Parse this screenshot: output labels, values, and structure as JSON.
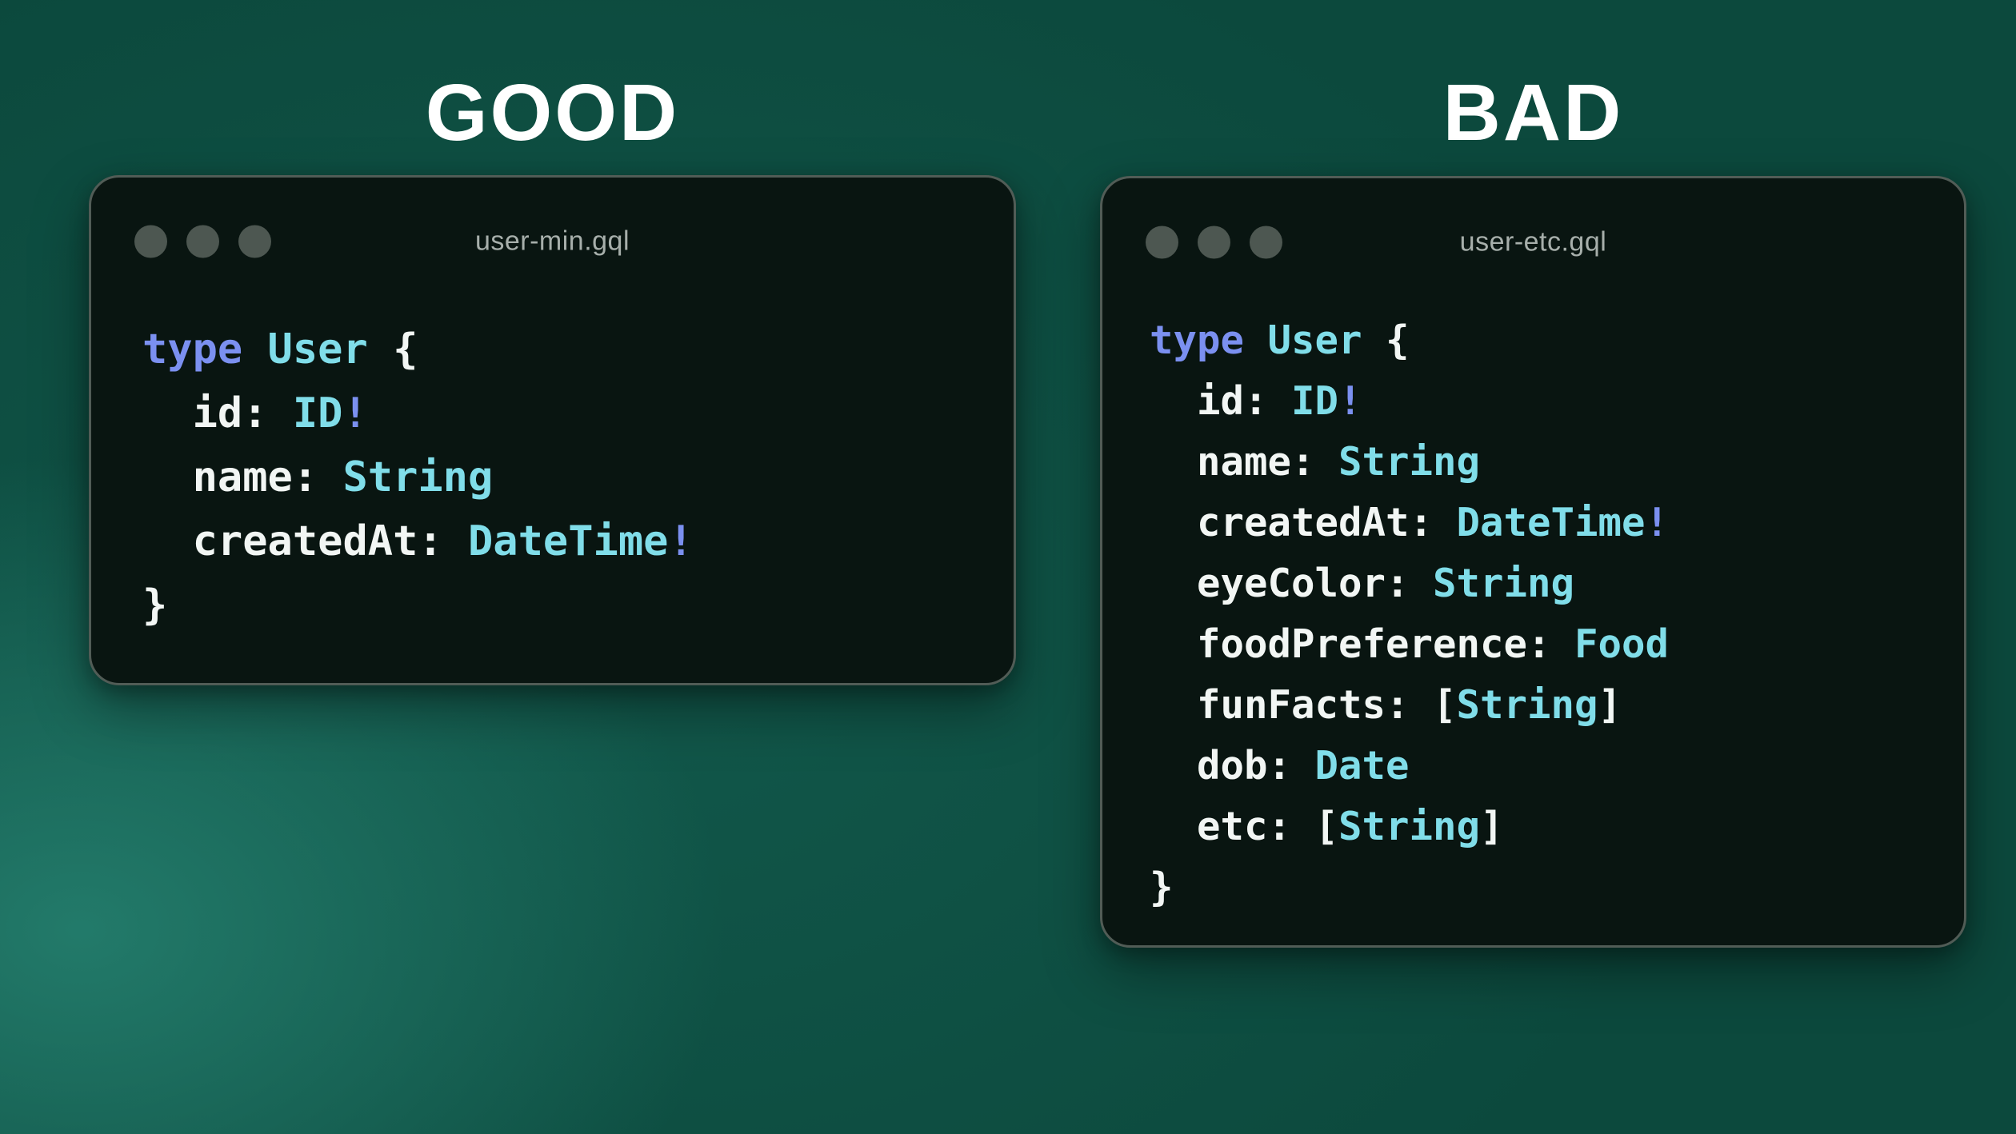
{
  "colors": {
    "background_base": "#0c493d",
    "background_glow": "#26826f",
    "heading": "#ffffff",
    "kw": "#7b90f0",
    "ty": "#80dde9",
    "plain": "#f2f6f4",
    "winbg": "#091511",
    "winborder": "#515c56",
    "dot": "#4d5751",
    "titletext": "#a7afab"
  },
  "headings": [
    {
      "id": "good",
      "label": "GOOD"
    },
    {
      "id": "bad",
      "label": "BAD"
    }
  ],
  "windows": [
    {
      "id": "good",
      "filename": "user-min.gql",
      "code": [
        [
          {
            "t": "kw",
            "s": "type"
          },
          {
            "t": "pl",
            "s": " "
          },
          {
            "t": "ty",
            "s": "User"
          },
          {
            "t": "pl",
            "s": " {"
          }
        ],
        [
          {
            "t": "pl",
            "s": "  id: "
          },
          {
            "t": "ty",
            "s": "ID"
          },
          {
            "t": "kw",
            "s": "!"
          }
        ],
        [
          {
            "t": "pl",
            "s": "  name: "
          },
          {
            "t": "ty",
            "s": "String"
          }
        ],
        [
          {
            "t": "pl",
            "s": "  createdAt: "
          },
          {
            "t": "ty",
            "s": "DateTime"
          },
          {
            "t": "kw",
            "s": "!"
          }
        ],
        [
          {
            "t": "pl",
            "s": "}"
          }
        ]
      ]
    },
    {
      "id": "bad",
      "filename": "user-etc.gql",
      "code": [
        [
          {
            "t": "kw",
            "s": "type"
          },
          {
            "t": "pl",
            "s": " "
          },
          {
            "t": "ty",
            "s": "User"
          },
          {
            "t": "pl",
            "s": " {"
          }
        ],
        [
          {
            "t": "pl",
            "s": "  id: "
          },
          {
            "t": "ty",
            "s": "ID"
          },
          {
            "t": "kw",
            "s": "!"
          }
        ],
        [
          {
            "t": "pl",
            "s": "  name: "
          },
          {
            "t": "ty",
            "s": "String"
          }
        ],
        [
          {
            "t": "pl",
            "s": "  createdAt: "
          },
          {
            "t": "ty",
            "s": "DateTime"
          },
          {
            "t": "kw",
            "s": "!"
          }
        ],
        [
          {
            "t": "pl",
            "s": "  eyeColor: "
          },
          {
            "t": "ty",
            "s": "String"
          }
        ],
        [
          {
            "t": "pl",
            "s": "  foodPreference: "
          },
          {
            "t": "ty",
            "s": "Food"
          }
        ],
        [
          {
            "t": "pl",
            "s": "  funFacts: ["
          },
          {
            "t": "ty",
            "s": "String"
          },
          {
            "t": "pl",
            "s": "]"
          }
        ],
        [
          {
            "t": "pl",
            "s": "  dob: "
          },
          {
            "t": "ty",
            "s": "Date"
          }
        ],
        [
          {
            "t": "pl",
            "s": "  etc: ["
          },
          {
            "t": "ty",
            "s": "String"
          },
          {
            "t": "pl",
            "s": "]"
          }
        ],
        [
          {
            "t": "pl",
            "s": "}"
          }
        ]
      ]
    }
  ]
}
